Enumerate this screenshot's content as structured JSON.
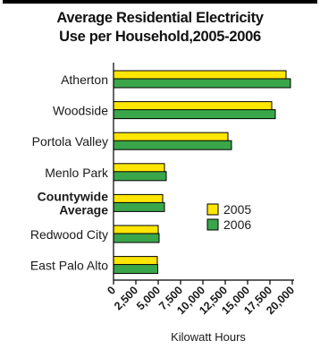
{
  "chart_data": {
    "type": "bar",
    "orientation": "horizontal",
    "title_line1": "Average Residential Electricity",
    "title_line2": "Use per Household,2005-2006",
    "xlabel": "Kilowatt Hours",
    "ylabel": "",
    "xlim": [
      0,
      20000
    ],
    "x_ticks": [
      0,
      2500,
      5000,
      7500,
      10000,
      12500,
      15000,
      17500,
      20000
    ],
    "x_tick_labels": [
      "0",
      "2,500",
      "5,000",
      "7,500",
      "10,000",
      "12,500",
      "15,000",
      "17,500",
      "20,000"
    ],
    "grid": false,
    "legend_position": "right",
    "categories": [
      {
        "label": "Atherton",
        "bold": false
      },
      {
        "label": "Woodside",
        "bold": false
      },
      {
        "label": "Portola Valley",
        "bold": false
      },
      {
        "label": "Menlo Park",
        "bold": false
      },
      {
        "label": "Countywide",
        "label2": "Average",
        "bold": true
      },
      {
        "label": "Redwood City",
        "bold": false
      },
      {
        "label": "East Palo Alto",
        "bold": false
      }
    ],
    "series": [
      {
        "name": "2005",
        "color": "#ffe600",
        "values": [
          19300,
          17700,
          12800,
          5700,
          5500,
          5000,
          4900
        ]
      },
      {
        "name": "2006",
        "color": "#3aa64a",
        "values": [
          19800,
          18100,
          13200,
          5900,
          5700,
          5100,
          4950
        ]
      }
    ]
  }
}
